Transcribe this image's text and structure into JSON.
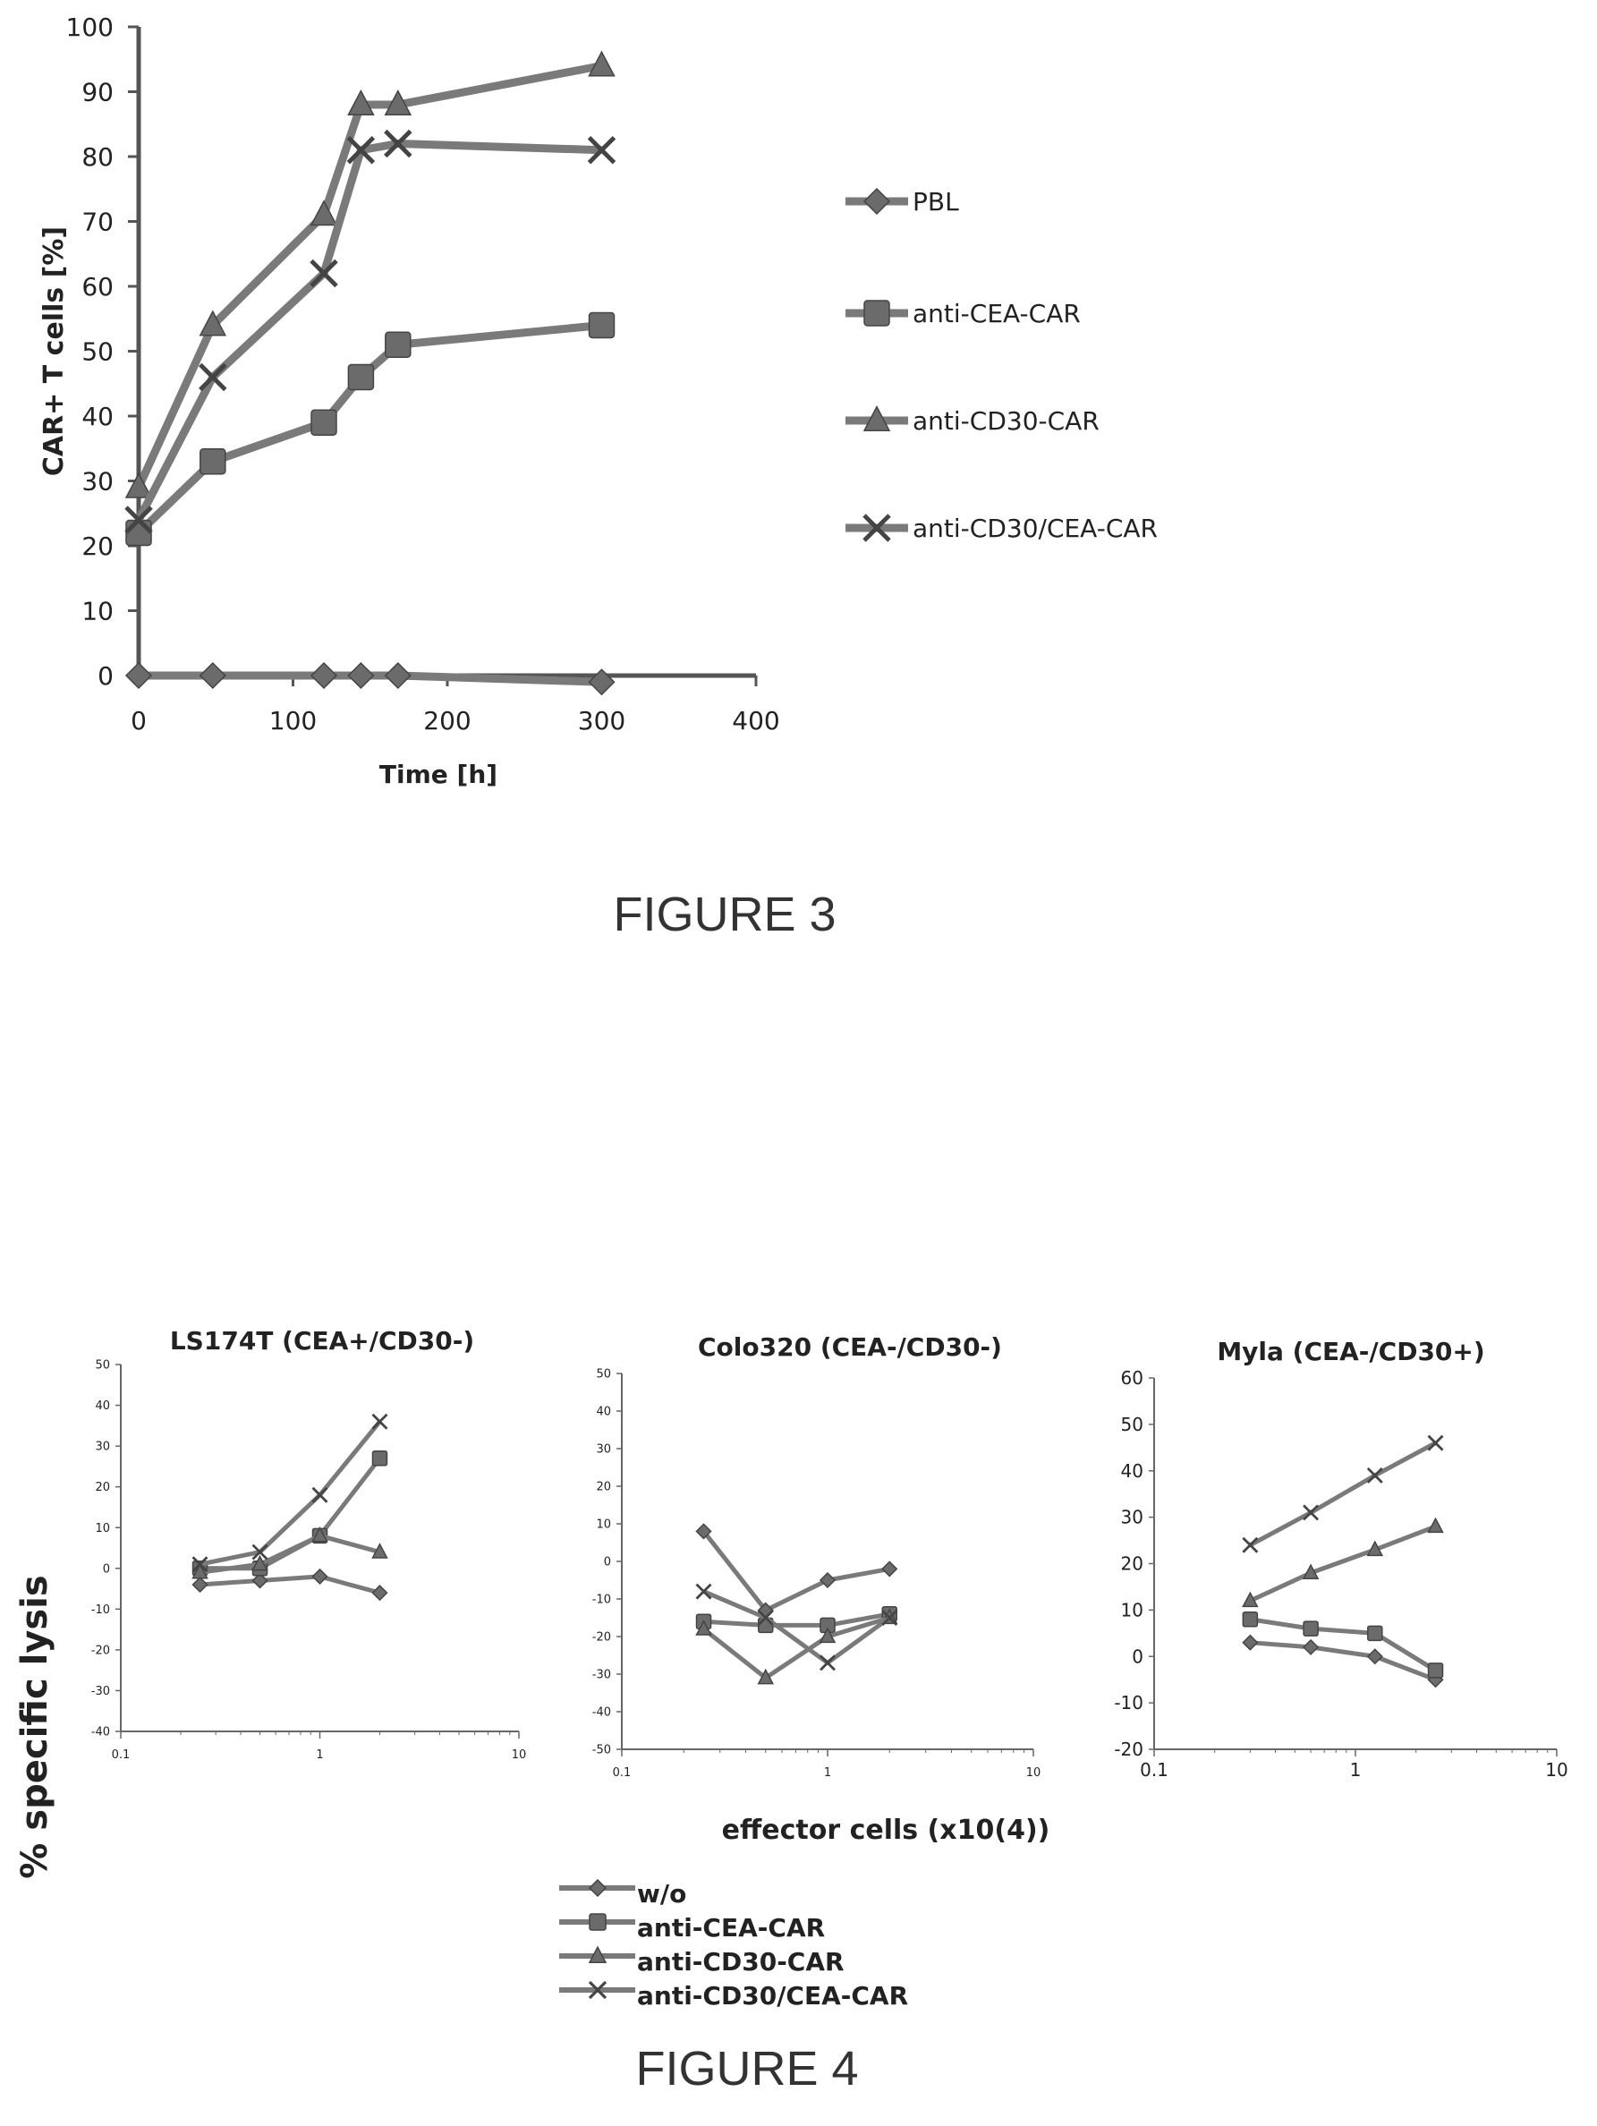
{
  "figure3": {
    "caption": "FIGURE 3",
    "chart_data": {
      "type": "line",
      "xlabel": "Time [h]",
      "ylabel": "CAR+ T cells [%]",
      "xlim": [
        0,
        400
      ],
      "ylim": [
        0,
        100
      ],
      "x_ticks": [
        "0",
        "100",
        "200",
        "300",
        "400"
      ],
      "y_ticks": [
        "0",
        "10",
        "20",
        "30",
        "40",
        "50",
        "60",
        "70",
        "80",
        "90",
        "100"
      ],
      "legend_position": "right",
      "series": [
        {
          "name": "PBL",
          "marker": "diamond",
          "x": [
            0,
            48,
            120,
            144,
            168,
            300
          ],
          "y": [
            0,
            0,
            0,
            0,
            0,
            -1
          ]
        },
        {
          "name": "anti-CEA-CAR",
          "marker": "square",
          "x": [
            0,
            48,
            120,
            144,
            168,
            300
          ],
          "y": [
            22,
            33,
            39,
            46,
            51,
            54
          ]
        },
        {
          "name": "anti-CD30-CAR",
          "marker": "triangle",
          "x": [
            0,
            48,
            120,
            144,
            168,
            300
          ],
          "y": [
            29,
            54,
            71,
            88,
            88,
            94
          ]
        },
        {
          "name": "anti-CD30/CEA-CAR",
          "marker": "x",
          "x": [
            0,
            48,
            120,
            144,
            168,
            300
          ],
          "y": [
            24,
            46,
            62,
            81,
            82,
            81
          ]
        }
      ]
    }
  },
  "figure4": {
    "caption": "FIGURE 4",
    "ylabel": "% specific lysis",
    "xlabel": "effector cells (x10(4))",
    "legend": [
      "w/o",
      "anti-CEA-CAR",
      "anti-CD30-CAR",
      "anti-CD30/CEA-CAR"
    ],
    "chart_data": [
      {
        "type": "line",
        "title": "LS174T (CEA+/CD30-)",
        "xscale": "log",
        "xlim": [
          0.1,
          10
        ],
        "ylim": [
          -40,
          50
        ],
        "x_ticks": [
          "0.1",
          "1",
          "10"
        ],
        "y_ticks": [
          "50",
          "40",
          "30",
          "20",
          "10",
          "0",
          "-10",
          "-20",
          "-30",
          "-40"
        ],
        "x": [
          0.25,
          0.5,
          1,
          2
        ],
        "series": [
          {
            "name": "w/o",
            "marker": "diamond",
            "values": [
              -4,
              -3,
              -2,
              -6
            ]
          },
          {
            "name": "anti-CEA-CAR",
            "marker": "square",
            "values": [
              0,
              0,
              8,
              27
            ]
          },
          {
            "name": "anti-CD30-CAR",
            "marker": "triangle",
            "values": [
              -1,
              1,
              8,
              4
            ]
          },
          {
            "name": "anti-CD30/CEA-CAR",
            "marker": "x",
            "values": [
              1,
              4,
              18,
              36
            ]
          }
        ]
      },
      {
        "type": "line",
        "title": "Colo320 (CEA-/CD30-)",
        "xscale": "log",
        "xlim": [
          0.1,
          10
        ],
        "ylim": [
          -50,
          50
        ],
        "x_ticks": [
          "0.1",
          "1",
          "10"
        ],
        "y_ticks": [
          "50",
          "40",
          "30",
          "20",
          "10",
          "0",
          "-10",
          "-20",
          "-30",
          "-40",
          "-50"
        ],
        "x": [
          0.25,
          0.5,
          1,
          2
        ],
        "series": [
          {
            "name": "w/o",
            "marker": "diamond",
            "values": [
              8,
              -13,
              -5,
              -2
            ]
          },
          {
            "name": "anti-CEA-CAR",
            "marker": "square",
            "values": [
              -16,
              -17,
              -17,
              -14
            ]
          },
          {
            "name": "anti-CD30-CAR",
            "marker": "triangle",
            "values": [
              -18,
              -31,
              -20,
              -15
            ]
          },
          {
            "name": "anti-CD30/CEA-CAR",
            "marker": "x",
            "values": [
              -8,
              -15,
              -27,
              -15
            ]
          }
        ]
      },
      {
        "type": "line",
        "title": "Myla (CEA-/CD30+)",
        "xscale": "log",
        "xlim": [
          0.1,
          10
        ],
        "ylim": [
          -20,
          60
        ],
        "x_ticks": [
          "0.1",
          "1",
          "10"
        ],
        "y_ticks": [
          "60",
          "50",
          "40",
          "30",
          "20",
          "10",
          "0",
          "-10",
          "-20"
        ],
        "x": [
          0.3,
          0.6,
          1.25,
          2.5
        ],
        "series": [
          {
            "name": "w/o",
            "marker": "diamond",
            "values": [
              3,
              2,
              0,
              -5
            ]
          },
          {
            "name": "anti-CEA-CAR",
            "marker": "square",
            "values": [
              8,
              6,
              5,
              -3
            ]
          },
          {
            "name": "anti-CD30-CAR",
            "marker": "triangle",
            "values": [
              12,
              18,
              23,
              28
            ]
          },
          {
            "name": "anti-CD30/CEA-CAR",
            "marker": "x",
            "values": [
              24,
              31,
              39,
              46
            ]
          }
        ]
      }
    ]
  }
}
